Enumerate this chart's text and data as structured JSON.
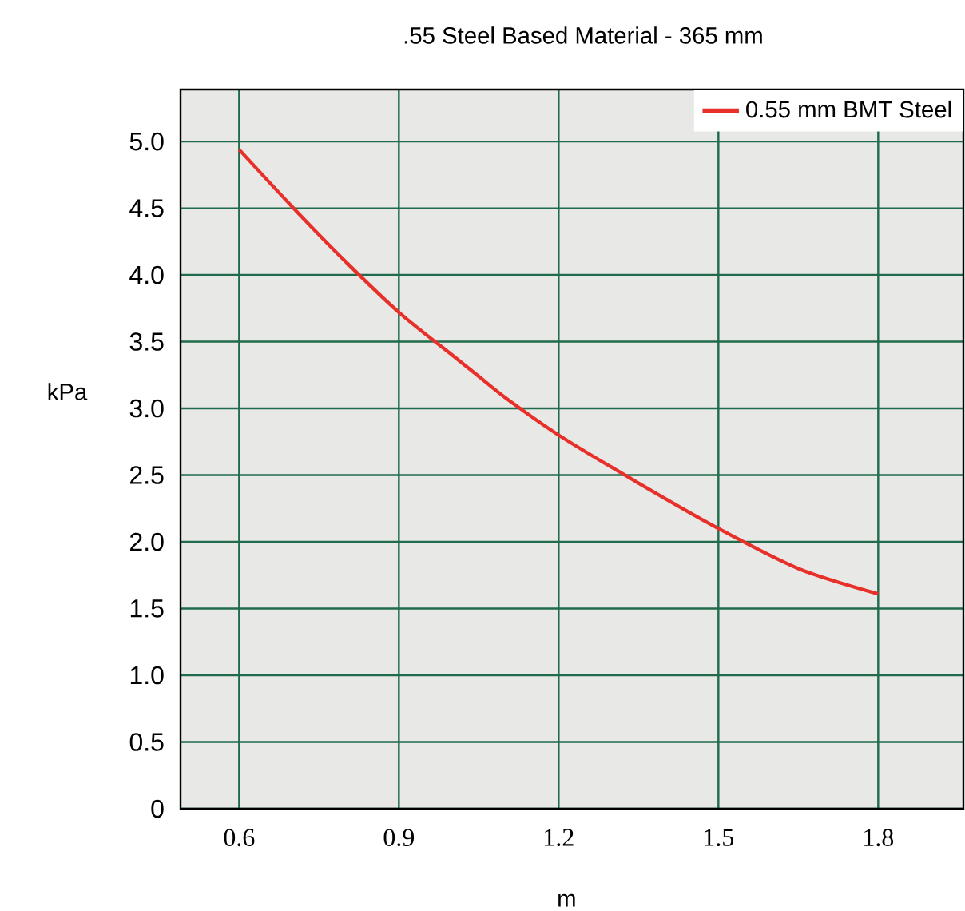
{
  "chart_data": {
    "type": "line",
    "title": ".55 Steel Based Material - 365  mm",
    "xlabel": "m",
    "ylabel": "kPa",
    "x": [
      0.6,
      0.7,
      0.8,
      0.9,
      1.0,
      1.05,
      1.1,
      1.2,
      1.35,
      1.5,
      1.65,
      1.8
    ],
    "series": [
      {
        "name": "0.55 mm BMT Steel",
        "color": "#e8302a",
        "values": [
          4.94,
          4.51,
          4.1,
          3.72,
          3.4,
          3.24,
          3.08,
          2.8,
          2.44,
          2.1,
          1.8,
          1.61
        ]
      }
    ],
    "xlim": [
      0.49,
      1.96
    ],
    "ylim": [
      0,
      5.39
    ],
    "xticks": [
      0.6,
      0.9,
      1.2,
      1.5,
      1.8
    ],
    "yticks": [
      0,
      0.5,
      {
        "value": 1,
        "label": "1.0"
      },
      1.5,
      {
        "value": 2,
        "label": "2.0"
      },
      2.5,
      {
        "value": 3,
        "label": "3.0"
      },
      3.5,
      {
        "value": 4,
        "label": "4.0"
      },
      4.5,
      {
        "value": 5,
        "label": "5.0"
      }
    ],
    "grid": true,
    "legend": "top right",
    "marker": "none",
    "line_style": "solid"
  }
}
